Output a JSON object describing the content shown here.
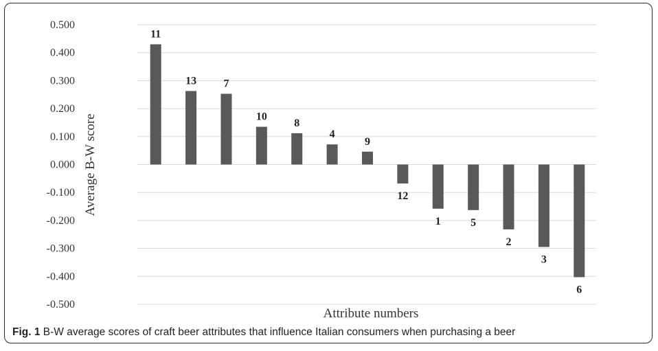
{
  "caption": {
    "label": "Fig. 1",
    "text": "B-W average scores of craft beer attributes that influence Italian consumers when purchasing a beer"
  },
  "chart_data": {
    "type": "bar",
    "title": "",
    "xlabel": "Attribute numbers",
    "ylabel": "Average B-W score",
    "ylim": [
      -0.5,
      0.5
    ],
    "yticks": [
      "0.500",
      "0.400",
      "0.300",
      "0.200",
      "0.100",
      "0.000",
      "-0.100",
      "-0.200",
      "-0.300",
      "-0.400",
      "-0.500"
    ],
    "grid": true,
    "bar_color": "#595959",
    "categories": [
      "11",
      "13",
      "7",
      "10",
      "8",
      "4",
      "9",
      "12",
      "1",
      "5",
      "2",
      "3",
      "6"
    ],
    "values": [
      0.43,
      0.263,
      0.253,
      0.135,
      0.112,
      0.072,
      0.046,
      -0.068,
      -0.158,
      -0.163,
      -0.232,
      -0.295,
      -0.403
    ]
  }
}
